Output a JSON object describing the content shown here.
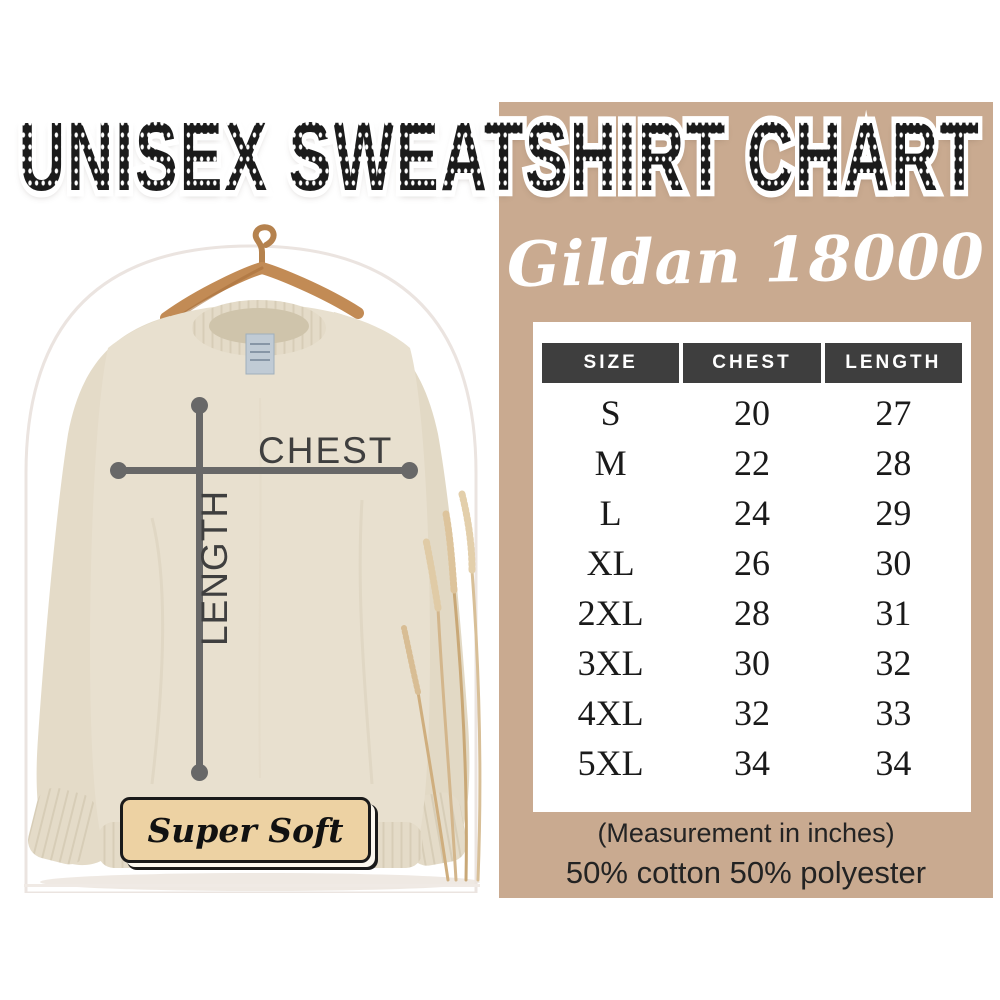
{
  "title": "UNISEX SWEATSHIRT CHART",
  "panel": {
    "heading": "Gildan 18000",
    "note_inches": "(Measurement in inches)",
    "note_fabric": "50% cotton 50% polyester"
  },
  "photo": {
    "chest_label": "CHEST",
    "length_label": "LENGTH",
    "badge": "Super Soft"
  },
  "chart_data": {
    "type": "table",
    "title": "Gildan 18000 Unisex Sweatshirt Size Chart",
    "columns": [
      "SIZE",
      "CHEST",
      "LENGTH"
    ],
    "rows": [
      [
        "S",
        20,
        27
      ],
      [
        "M",
        22,
        28
      ],
      [
        "L",
        24,
        29
      ],
      [
        "XL",
        26,
        30
      ],
      [
        "2XL",
        28,
        31
      ],
      [
        "3XL",
        30,
        32
      ],
      [
        "4XL",
        32,
        33
      ],
      [
        "5XL",
        34,
        34
      ]
    ],
    "units": "inches"
  },
  "colors": {
    "tan_panel": "#c9aa90",
    "header_bg": "#3e3e3e",
    "header_text": "#ffffff",
    "table_bg": "#ffffff",
    "table_text": "#1a1a1a",
    "title_text": "#1b1b1b",
    "script_text": "#ffffff",
    "badge_bg": "#edd2a3",
    "badge_border": "#1a1a1a",
    "sweatshirt": "#e8e0cf",
    "hanger_wood": "#c28b55",
    "measure_line": "#686868",
    "label_text": "#3f3f3f"
  }
}
